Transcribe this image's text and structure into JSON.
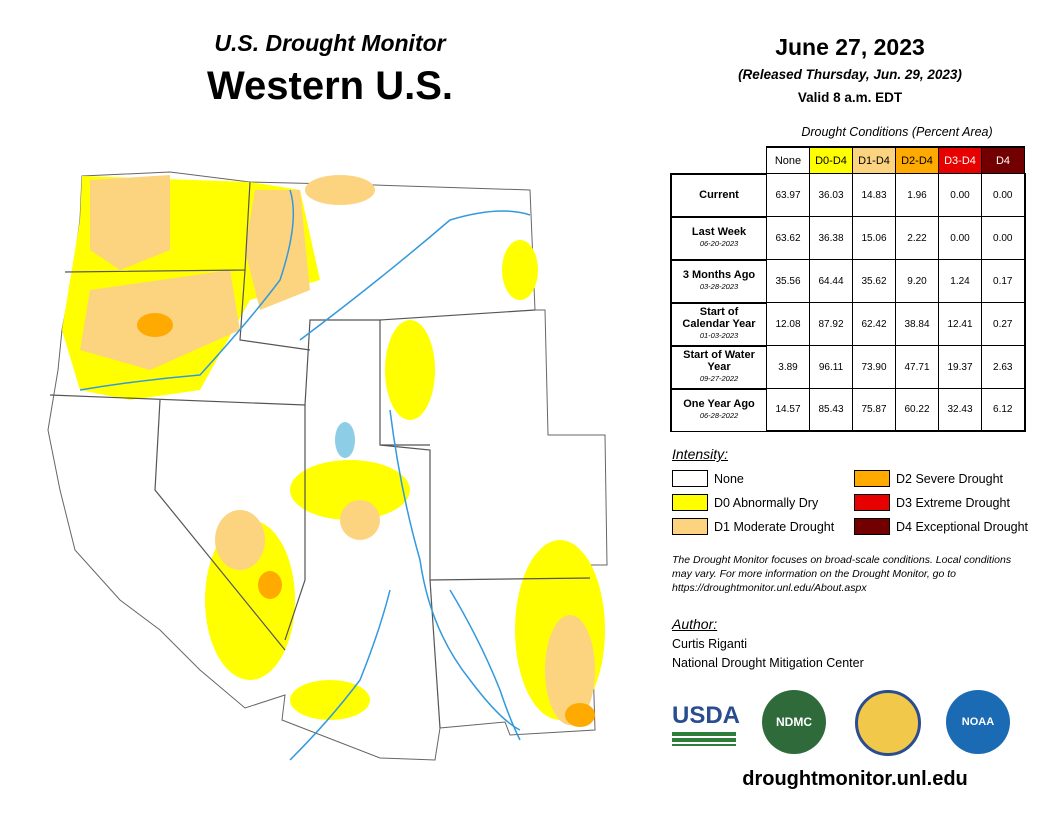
{
  "header": {
    "program": "U.S. Drought Monitor",
    "region": "Western U.S."
  },
  "date": {
    "title": "June 27, 2023",
    "released": "(Released Thursday, Jun. 29, 2023)",
    "valid": "Valid 8 a.m. EDT"
  },
  "table": {
    "caption": "Drought Conditions (Percent Area)",
    "columns": [
      {
        "label": "None",
        "color": "#ffffff",
        "text": "#000000"
      },
      {
        "label": "D0-D4",
        "color": "#ffff00",
        "text": "#000000"
      },
      {
        "label": "D1-D4",
        "color": "#fcd37f",
        "text": "#000000"
      },
      {
        "label": "D2-D4",
        "color": "#ffaa00",
        "text": "#000000"
      },
      {
        "label": "D3-D4",
        "color": "#e60000",
        "text": "#ffffff"
      },
      {
        "label": "D4",
        "color": "#730000",
        "text": "#ffffff"
      }
    ],
    "rows": [
      {
        "label": "Current",
        "values": [
          "63.97",
          "36.03",
          "14.83",
          "1.96",
          "0.00",
          "0.00"
        ]
      },
      {
        "label": "Last Week",
        "date": "06-20-2023",
        "values": [
          "63.62",
          "36.38",
          "15.06",
          "2.22",
          "0.00",
          "0.00"
        ]
      },
      {
        "label": "3 Months Ago",
        "date": "03-28-2023",
        "values": [
          "35.56",
          "64.44",
          "35.62",
          "9.20",
          "1.24",
          "0.17"
        ]
      },
      {
        "label": "Start of Calendar Year",
        "date": "01-03-2023",
        "values": [
          "12.08",
          "87.92",
          "62.42",
          "38.84",
          "12.41",
          "0.27"
        ]
      },
      {
        "label": "Start of Water Year",
        "date": "09-27-2022",
        "values": [
          "3.89",
          "96.11",
          "73.90",
          "47.71",
          "19.37",
          "2.63"
        ]
      },
      {
        "label": "One Year Ago",
        "date": "06-28-2022",
        "values": [
          "14.57",
          "85.43",
          "75.87",
          "60.22",
          "32.43",
          "6.12"
        ]
      }
    ]
  },
  "legend": {
    "title": "Intensity:",
    "items": [
      {
        "label": "None",
        "color": "#ffffff"
      },
      {
        "label": "D0 Abnormally Dry",
        "color": "#ffff00"
      },
      {
        "label": "D1 Moderate Drought",
        "color": "#fcd37f"
      },
      {
        "label": "D2 Severe Drought",
        "color": "#ffaa00"
      },
      {
        "label": "D3 Extreme Drought",
        "color": "#e60000"
      },
      {
        "label": "D4 Exceptional Drought",
        "color": "#730000"
      }
    ]
  },
  "note": "The Drought Monitor focuses on broad-scale conditions. Local conditions may vary. For more information on the Drought Monitor, go to https://droughtmonitor.unl.edu/About.aspx",
  "author": {
    "heading": "Author:",
    "name": "Curtis Riganti",
    "organization": "National Drought Mitigation Center"
  },
  "logos": {
    "usda": "USDA",
    "ndmc": "NDMC",
    "noaa": "NOAA"
  },
  "url": "droughtmonitor.unl.edu"
}
